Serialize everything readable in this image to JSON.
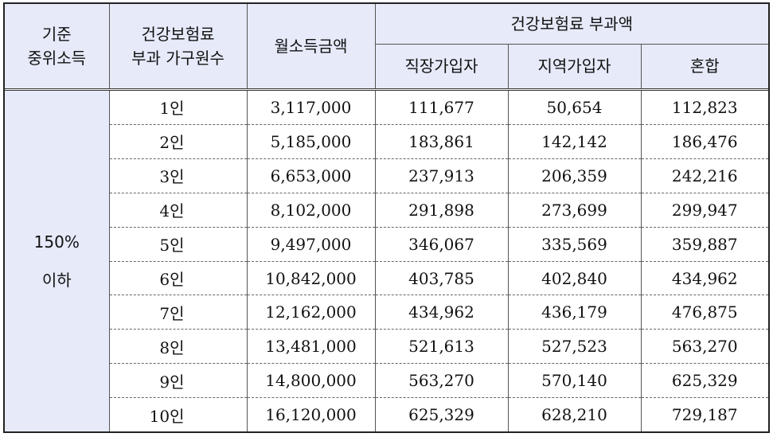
{
  "header": {
    "col1": [
      "기준",
      "중위소득"
    ],
    "col2": [
      "건강보험료",
      "부과 가구원수"
    ],
    "col3": "월소득금액",
    "group": "건강보험료 부과액",
    "sub": [
      "직장가입자",
      "지역가입자",
      "혼합"
    ]
  },
  "group_label": [
    "150%",
    "이하"
  ],
  "rows": [
    {
      "household": "1인",
      "income": "3,117,000",
      "workplace": "111,677",
      "regional": "50,654",
      "mixed": "112,823"
    },
    {
      "household": "2인",
      "income": "5,185,000",
      "workplace": "183,861",
      "regional": "142,142",
      "mixed": "186,476"
    },
    {
      "household": "3인",
      "income": "6,653,000",
      "workplace": "237,913",
      "regional": "206,359",
      "mixed": "242,216"
    },
    {
      "household": "4인",
      "income": "8,102,000",
      "workplace": "291,898",
      "regional": "273,699",
      "mixed": "299,947"
    },
    {
      "household": "5인",
      "income": "9,497,000",
      "workplace": "346,067",
      "regional": "335,569",
      "mixed": "359,887"
    },
    {
      "household": "6인",
      "income": "10,842,000",
      "workplace": "403,785",
      "regional": "402,840",
      "mixed": "434,962"
    },
    {
      "household": "7인",
      "income": "12,162,000",
      "workplace": "434,962",
      "regional": "436,179",
      "mixed": "476,875"
    },
    {
      "household": "8인",
      "income": "13,481,000",
      "workplace": "521,613",
      "regional": "527,523",
      "mixed": "563,270"
    },
    {
      "household": "9인",
      "income": "14,800,000",
      "workplace": "563,270",
      "regional": "570,140",
      "mixed": "625,329"
    },
    {
      "household": "10인",
      "income": "16,120,000",
      "workplace": "625,329",
      "regional": "628,210",
      "mixed": "729,187"
    }
  ]
}
